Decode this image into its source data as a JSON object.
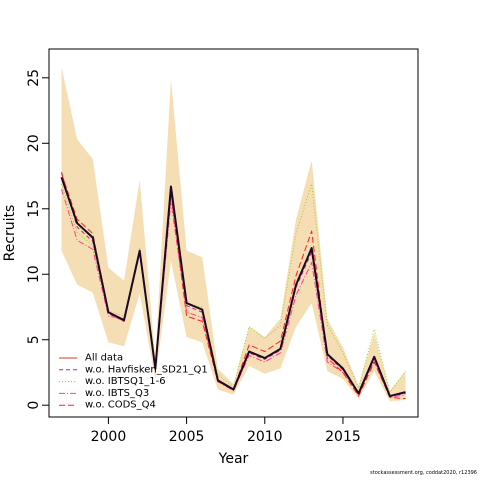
{
  "chart_data": {
    "type": "line",
    "xlabel": "Year",
    "ylabel": "Recruits",
    "xlim": [
      1996.2,
      2019.8
    ],
    "ylim": [
      -0.9,
      27.2
    ],
    "x_ticks": [
      2000,
      2005,
      2010,
      2015
    ],
    "y_ticks": [
      0,
      5,
      10,
      15,
      20,
      25
    ],
    "grid": false,
    "legend_position": "bottom-left",
    "x": [
      1997,
      1998,
      1999,
      2000,
      2001,
      2002,
      2003,
      2004,
      2005,
      2006,
      2007,
      2008,
      2009,
      2010,
      2011,
      2012,
      2013,
      2014,
      2015,
      2016,
      2017,
      2018,
      2019
    ],
    "confidence_band": {
      "color": "#F5DEB3",
      "lower": [
        11.8,
        9.2,
        8.6,
        4.8,
        4.5,
        8.5,
        2.0,
        11.0,
        5.2,
        4.8,
        1.2,
        0.8,
        3.0,
        2.4,
        2.8,
        6.0,
        7.8,
        2.6,
        2.0,
        0.5,
        2.6,
        0.3,
        0.4
      ],
      "upper": [
        25.8,
        20.3,
        18.8,
        10.5,
        9.5,
        17.2,
        3.6,
        24.9,
        11.8,
        11.3,
        2.8,
        1.6,
        6.0,
        5.2,
        6.6,
        14.2,
        18.7,
        6.6,
        4.4,
        1.5,
        5.5,
        1.1,
        2.6
      ]
    },
    "series": [
      {
        "name": "All data",
        "color": "#e8302e",
        "dash": "",
        "width": 1,
        "values": [
          17.4,
          13.9,
          12.8,
          7.1,
          6.5,
          11.8,
          2.8,
          16.7,
          7.8,
          7.3,
          1.9,
          1.2,
          4.1,
          3.6,
          4.3,
          9.2,
          12.0,
          3.9,
          2.8,
          0.9,
          3.7,
          0.7,
          1.0
        ]
      },
      {
        "name": "w.o. Havfisken_SD21_Q1",
        "color": "#c0267b",
        "dash": "4,3",
        "width": 1,
        "values": [
          17.8,
          13.6,
          12.5,
          7.0,
          6.4,
          11.7,
          2.7,
          16.5,
          7.6,
          7.1,
          1.9,
          1.2,
          4.0,
          3.5,
          4.2,
          9.0,
          11.7,
          3.8,
          2.7,
          0.9,
          3.6,
          0.7,
          0.9
        ]
      },
      {
        "name": "w.o. IBTSQ1_1-6",
        "color": "#9acd32",
        "dash": "1,2",
        "width": 1,
        "values": [
          16.9,
          13.2,
          12.2,
          7.2,
          6.8,
          12.0,
          2.9,
          16.0,
          7.7,
          7.5,
          2.3,
          1.4,
          6.0,
          5.1,
          6.1,
          13.1,
          16.9,
          6.1,
          4.0,
          1.3,
          5.8,
          1.0,
          2.6
        ]
      },
      {
        "name": "w.o. IBTS_Q3",
        "color": "#ff3e96",
        "dash": "6,2,1,2",
        "width": 1,
        "values": [
          16.5,
          12.6,
          11.9,
          6.8,
          6.6,
          11.6,
          2.7,
          15.6,
          7.1,
          6.7,
          1.8,
          1.1,
          3.8,
          3.3,
          4.0,
          8.4,
          10.9,
          3.3,
          2.5,
          0.8,
          3.4,
          0.6,
          0.8
        ]
      },
      {
        "name": "w.o. CODS_Q4",
        "color": "#ff2020",
        "dash": "6,3",
        "width": 1,
        "values": [
          17.7,
          14.2,
          13.1,
          7.1,
          6.4,
          11.6,
          2.8,
          16.2,
          6.8,
          6.4,
          1.8,
          1.2,
          4.6,
          4.1,
          4.9,
          9.9,
          13.3,
          3.6,
          2.5,
          0.7,
          3.3,
          0.6,
          0.5
        ]
      },
      {
        "name": "",
        "color": "#1a0a24",
        "dash": "",
        "width": 2,
        "values": [
          17.4,
          13.9,
          12.8,
          7.1,
          6.5,
          11.8,
          2.8,
          16.7,
          7.8,
          7.3,
          1.9,
          1.2,
          4.1,
          3.6,
          4.3,
          9.2,
          12.0,
          3.9,
          2.8,
          0.9,
          3.7,
          0.7,
          1.0
        ]
      }
    ],
    "legend": [
      "All data",
      "w.o. Havfisken_SD21_Q1",
      "w.o. IBTSQ1_1-6",
      "w.o. IBTS_Q3",
      "w.o. CODS_Q4"
    ]
  },
  "footnote": "stockassessment.org, coddat2020, r12396"
}
